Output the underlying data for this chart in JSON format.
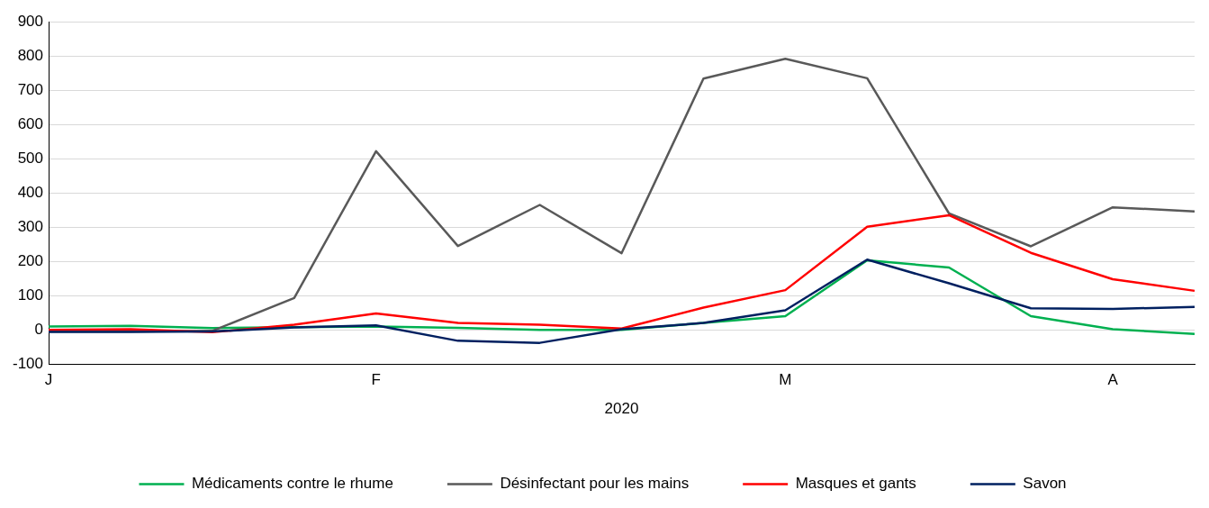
{
  "chart_data": {
    "type": "line",
    "xlabel": "2020",
    "categories": [
      "J",
      null,
      null,
      null,
      "F",
      null,
      null,
      null,
      null,
      "M",
      null,
      null,
      null,
      "A",
      null
    ],
    "series": [
      {
        "name": "Médicaments contre le rhume",
        "color": "#00b050",
        "values": [
          10,
          12,
          5,
          8,
          10,
          6,
          0,
          0,
          20,
          40,
          203,
          182,
          40,
          2,
          -12
        ]
      },
      {
        "name": "Désinfectant pour les mains",
        "color": "#595959",
        "values": [
          -5,
          -5,
          -3,
          93,
          522,
          245,
          365,
          224,
          734,
          792,
          735,
          340,
          244,
          358,
          346
        ]
      },
      {
        "name": "Masques et gants",
        "color": "#ff0000",
        "values": [
          0,
          2,
          -7,
          15,
          48,
          20,
          15,
          4,
          65,
          116,
          301,
          335,
          225,
          148,
          114
        ]
      },
      {
        "name": "Savon",
        "color": "#002060",
        "values": [
          -6,
          -6,
          -5,
          7,
          13,
          -32,
          -38,
          2,
          20,
          57,
          205,
          136,
          63,
          61,
          67
        ]
      }
    ],
    "ylim": [
      -100,
      900
    ],
    "yticks": [
      -100,
      0,
      100,
      200,
      300,
      400,
      500,
      600,
      700,
      800,
      900
    ],
    "grid": "y",
    "legend": "bottom"
  }
}
